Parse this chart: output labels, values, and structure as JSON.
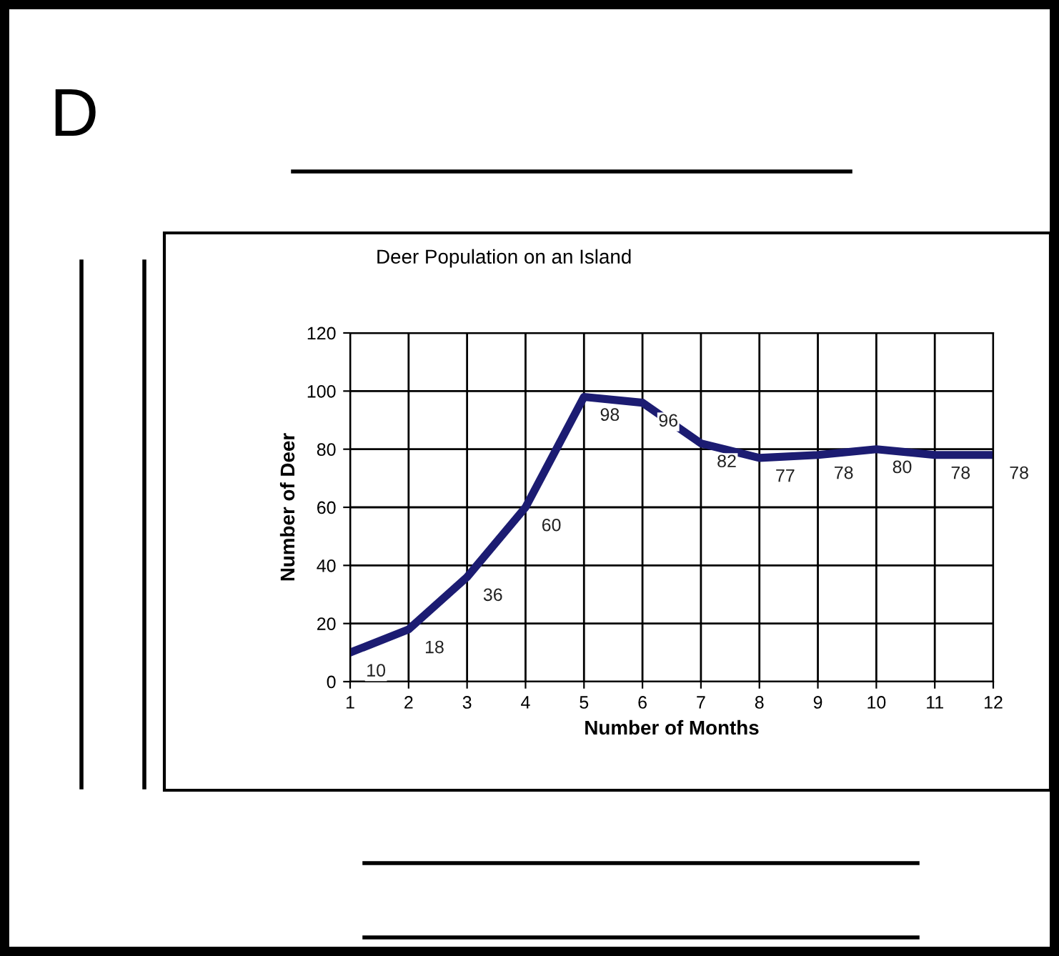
{
  "chart_data": {
    "type": "line",
    "title": "Deer Population on an Island",
    "xlabel": "Number of Months",
    "ylabel": "Number of Deer",
    "x": [
      1,
      2,
      3,
      4,
      5,
      6,
      7,
      8,
      9,
      10,
      11,
      12
    ],
    "series": [
      {
        "color": "#1c1c72",
        "values": [
          10,
          18,
          36,
          60,
          98,
          96,
          82,
          77,
          78,
          80,
          78,
          78
        ]
      }
    ],
    "xlim": [
      1,
      12
    ],
    "xticks": [
      1,
      2,
      3,
      4,
      5,
      6,
      7,
      8,
      9,
      10,
      11,
      12
    ],
    "ylim": [
      0,
      120
    ],
    "yticks": [
      0,
      20,
      40,
      60,
      80,
      100,
      120
    ],
    "grid": true,
    "marker": "none",
    "line_style": "solid",
    "data_labels": true,
    "legend": false,
    "annotations": [
      "D"
    ]
  }
}
